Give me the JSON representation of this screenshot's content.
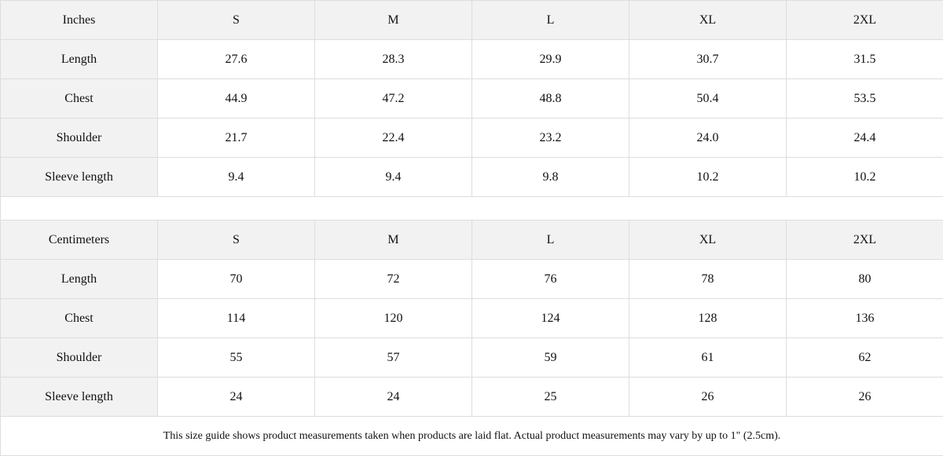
{
  "tables": [
    {
      "unit": "Inches",
      "sizes": [
        "S",
        "M",
        "L",
        "XL",
        "2XL"
      ],
      "rows": [
        {
          "label": "Length",
          "values": [
            "27.6",
            "28.3",
            "29.9",
            "30.7",
            "31.5"
          ]
        },
        {
          "label": "Chest",
          "values": [
            "44.9",
            "47.2",
            "48.8",
            "50.4",
            "53.5"
          ]
        },
        {
          "label": "Shoulder",
          "values": [
            "21.7",
            "22.4",
            "23.2",
            "24.0",
            "24.4"
          ]
        },
        {
          "label": "Sleeve length",
          "values": [
            "9.4",
            "9.4",
            "9.8",
            "10.2",
            "10.2"
          ]
        }
      ]
    },
    {
      "unit": "Centimeters",
      "sizes": [
        "S",
        "M",
        "L",
        "XL",
        "2XL"
      ],
      "rows": [
        {
          "label": "Length",
          "values": [
            "70",
            "72",
            "76",
            "78",
            "80"
          ]
        },
        {
          "label": "Chest",
          "values": [
            "114",
            "120",
            "124",
            "128",
            "136"
          ]
        },
        {
          "label": "Shoulder",
          "values": [
            "55",
            "57",
            "59",
            "61",
            "62"
          ]
        },
        {
          "label": "Sleeve length",
          "values": [
            "24",
            "24",
            "25",
            "26",
            "26"
          ]
        }
      ]
    }
  ],
  "note": "This size guide shows product measurements taken when products are laid flat.  Actual product measurements may vary by up to 1\" (2.5cm).",
  "colors": {
    "header_bg": "#f2f2f2",
    "border": "#dddddd"
  }
}
